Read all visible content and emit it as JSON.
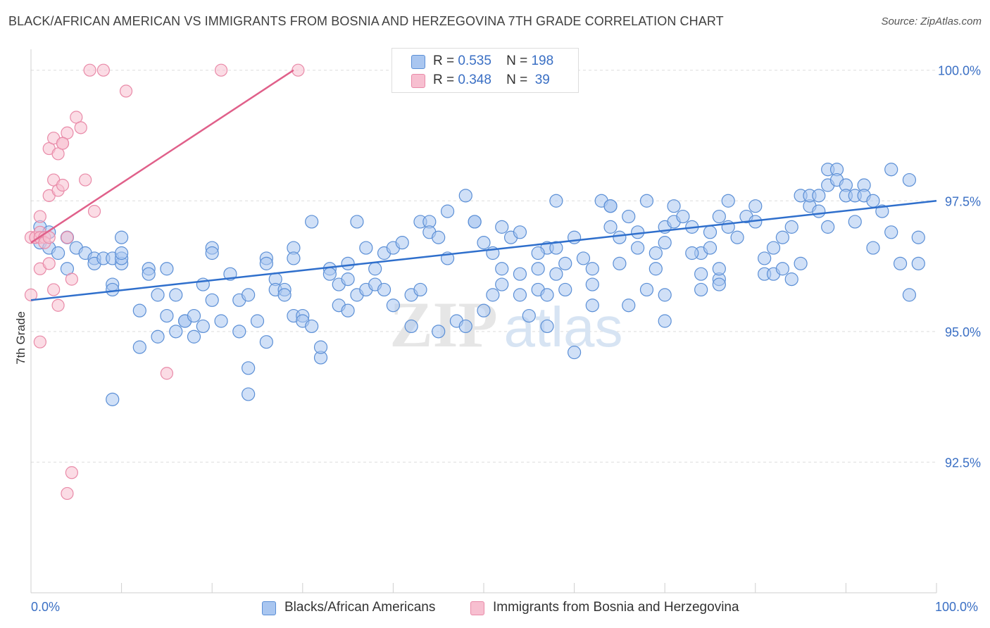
{
  "title": "BLACK/AFRICAN AMERICAN VS IMMIGRANTS FROM BOSNIA AND HERZEGOVINA 7TH GRADE CORRELATION CHART",
  "source": "Source: ZipAtlas.com",
  "watermark": {
    "zip": "ZIP",
    "atlas": "atlas"
  },
  "legend": {
    "rows": [
      {
        "r_label": "R =",
        "r_value": "0.535",
        "n_label": "N =",
        "n_value": "198"
      },
      {
        "r_label": "R =",
        "r_value": "0.348",
        "n_label": "N =",
        "n_value": "39"
      }
    ]
  },
  "bottom_legend": {
    "series1": "Blacks/African Americans",
    "series2": "Immigrants from Bosnia and Herzegovina"
  },
  "chart_data": {
    "type": "scatter",
    "title": "BLACK/AFRICAN AMERICAN VS IMMIGRANTS FROM BOSNIA AND HERZEGOVINA 7TH GRADE CORRELATION CHART",
    "xlabel": "",
    "ylabel": "7th Grade",
    "x_tick_labels": [
      "0.0%",
      "100.0%"
    ],
    "y_tick_labels": [
      "100.0%",
      "97.5%",
      "95.0%",
      "92.5%"
    ],
    "y_ticks": [
      100.0,
      97.5,
      95.0,
      92.5
    ],
    "xlim": [
      0,
      100
    ],
    "ylim": [
      90.0,
      100.4
    ],
    "grid": true,
    "colors": {
      "series1_fill": "#a9c6f0",
      "series1_stroke": "#5b8fd6",
      "series1_line": "#2f6fcc",
      "series2_fill": "#f7bfd0",
      "series2_stroke": "#e98aa8",
      "series2_line": "#e0608a",
      "tick_label": "#3a6fc4",
      "grid": "#dddddd"
    },
    "series": [
      {
        "name": "Blacks/African Americans",
        "trend": {
          "x": [
            0,
            100
          ],
          "y": [
            95.6,
            97.5
          ]
        },
        "points": [
          [
            1,
            97.0
          ],
          [
            2,
            96.9
          ],
          [
            1,
            96.7
          ],
          [
            2,
            96.6
          ],
          [
            3,
            96.5
          ],
          [
            4,
            96.2
          ],
          [
            4,
            96.8
          ],
          [
            5,
            96.6
          ],
          [
            6,
            96.5
          ],
          [
            7,
            96.4
          ],
          [
            7,
            96.3
          ],
          [
            8,
            96.4
          ],
          [
            9,
            95.9
          ],
          [
            9,
            96.4
          ],
          [
            9,
            93.7
          ],
          [
            9,
            95.8
          ],
          [
            10,
            96.8
          ],
          [
            10,
            96.3
          ],
          [
            10,
            96.4
          ],
          [
            10,
            96.5
          ],
          [
            12,
            95.4
          ],
          [
            12,
            94.7
          ],
          [
            13,
            96.2
          ],
          [
            13,
            96.1
          ],
          [
            14,
            95.7
          ],
          [
            15,
            96.2
          ],
          [
            14,
            94.9
          ],
          [
            15,
            95.3
          ],
          [
            16,
            95.7
          ],
          [
            16,
            95.0
          ],
          [
            17,
            95.2
          ],
          [
            17,
            95.2
          ],
          [
            18,
            94.9
          ],
          [
            18,
            95.3
          ],
          [
            19,
            95.9
          ],
          [
            19,
            95.1
          ],
          [
            20,
            96.6
          ],
          [
            20,
            96.5
          ],
          [
            20,
            95.6
          ],
          [
            21,
            95.2
          ],
          [
            22,
            96.1
          ],
          [
            23,
            95.6
          ],
          [
            23,
            95.0
          ],
          [
            24,
            95.7
          ],
          [
            24,
            94.3
          ],
          [
            24,
            93.8
          ],
          [
            25,
            95.2
          ],
          [
            26,
            96.4
          ],
          [
            26,
            94.8
          ],
          [
            26,
            96.3
          ],
          [
            27,
            96.0
          ],
          [
            27,
            95.8
          ],
          [
            28,
            95.8
          ],
          [
            28,
            95.7
          ],
          [
            29,
            96.6
          ],
          [
            29,
            96.4
          ],
          [
            29,
            95.3
          ],
          [
            30,
            95.3
          ],
          [
            30,
            95.2
          ],
          [
            31,
            97.1
          ],
          [
            31,
            95.1
          ],
          [
            32,
            94.5
          ],
          [
            32,
            94.7
          ],
          [
            33,
            96.2
          ],
          [
            33,
            96.1
          ],
          [
            34,
            95.9
          ],
          [
            34,
            95.5
          ],
          [
            35,
            96.3
          ],
          [
            35,
            96.0
          ],
          [
            35,
            95.4
          ],
          [
            36,
            95.7
          ],
          [
            36,
            97.1
          ],
          [
            37,
            95.8
          ],
          [
            37,
            96.6
          ],
          [
            38,
            95.9
          ],
          [
            38,
            96.2
          ],
          [
            39,
            96.5
          ],
          [
            39,
            95.8
          ],
          [
            40,
            95.5
          ],
          [
            40,
            96.6
          ],
          [
            41,
            96.7
          ],
          [
            42,
            95.1
          ],
          [
            42,
            95.7
          ],
          [
            43,
            95.8
          ],
          [
            43,
            97.1
          ],
          [
            44,
            97.1
          ],
          [
            44,
            96.9
          ],
          [
            45,
            95.0
          ],
          [
            45,
            96.8
          ],
          [
            46,
            96.4
          ],
          [
            47,
            95.2
          ],
          [
            48,
            95.1
          ],
          [
            48,
            97.6
          ],
          [
            49,
            97.1
          ],
          [
            49,
            97.1
          ],
          [
            50,
            96.7
          ],
          [
            50,
            95.4
          ],
          [
            51,
            95.7
          ],
          [
            52,
            97.0
          ],
          [
            51,
            96.5
          ],
          [
            52,
            95.9
          ],
          [
            52,
            96.2
          ],
          [
            53,
            96.8
          ],
          [
            54,
            96.9
          ],
          [
            54,
            95.7
          ],
          [
            54,
            96.1
          ],
          [
            55,
            95.3
          ],
          [
            56,
            96.2
          ],
          [
            56,
            95.8
          ],
          [
            57,
            96.6
          ],
          [
            57,
            95.7
          ],
          [
            57,
            95.1
          ],
          [
            58,
            96.6
          ],
          [
            58,
            96.1
          ],
          [
            58,
            97.5
          ],
          [
            59,
            95.8
          ],
          [
            59,
            96.3
          ],
          [
            60,
            96.8
          ],
          [
            60,
            94.6
          ],
          [
            61,
            96.4
          ],
          [
            62,
            96.2
          ],
          [
            62,
            95.9
          ],
          [
            63,
            97.5
          ],
          [
            64,
            97.0
          ],
          [
            64,
            97.4
          ],
          [
            65,
            96.8
          ],
          [
            65,
            96.3
          ],
          [
            66,
            97.2
          ],
          [
            67,
            96.9
          ],
          [
            67,
            96.6
          ],
          [
            68,
            95.8
          ],
          [
            68,
            97.5
          ],
          [
            69,
            96.2
          ],
          [
            69,
            96.5
          ],
          [
            70,
            96.7
          ],
          [
            70,
            97.0
          ],
          [
            70,
            95.2
          ],
          [
            71,
            97.4
          ],
          [
            71,
            97.1
          ],
          [
            72,
            97.2
          ],
          [
            73,
            97.0
          ],
          [
            74,
            96.5
          ],
          [
            74,
            96.1
          ],
          [
            75,
            96.9
          ],
          [
            75,
            96.6
          ],
          [
            76,
            96.0
          ],
          [
            76,
            97.2
          ],
          [
            76,
            96.2
          ],
          [
            77,
            97.5
          ],
          [
            77,
            97.0
          ],
          [
            78,
            96.8
          ],
          [
            79,
            97.2
          ],
          [
            80,
            97.4
          ],
          [
            81,
            96.1
          ],
          [
            81,
            96.4
          ],
          [
            82,
            96.1
          ],
          [
            82,
            96.6
          ],
          [
            83,
            96.8
          ],
          [
            83,
            96.2
          ],
          [
            84,
            97.0
          ],
          [
            85,
            97.6
          ],
          [
            85,
            96.3
          ],
          [
            86,
            97.4
          ],
          [
            86,
            97.6
          ],
          [
            87,
            97.3
          ],
          [
            87,
            97.6
          ],
          [
            88,
            98.1
          ],
          [
            88,
            97.8
          ],
          [
            89,
            98.1
          ],
          [
            89,
            97.9
          ],
          [
            90,
            97.8
          ],
          [
            90,
            97.6
          ],
          [
            91,
            97.6
          ],
          [
            91,
            97.1
          ],
          [
            92,
            97.8
          ],
          [
            92,
            97.6
          ],
          [
            93,
            97.5
          ],
          [
            93,
            96.6
          ],
          [
            94,
            97.3
          ],
          [
            95,
            98.1
          ],
          [
            95,
            96.9
          ],
          [
            96,
            96.3
          ],
          [
            97,
            97.9
          ],
          [
            97,
            95.7
          ],
          [
            98,
            96.8
          ],
          [
            98,
            96.3
          ],
          [
            84,
            96.0
          ],
          [
            76,
            95.9
          ],
          [
            66,
            95.5
          ],
          [
            74,
            95.8
          ],
          [
            73,
            96.5
          ],
          [
            56,
            96.5
          ],
          [
            62,
            95.5
          ],
          [
            70,
            95.7
          ],
          [
            46,
            97.3
          ],
          [
            64,
            97.4
          ],
          [
            80,
            97.1
          ],
          [
            88,
            97.0
          ]
        ]
      },
      {
        "name": "Immigrants from Bosnia and Herzegovina",
        "trend": {
          "x": [
            0,
            29
          ],
          "y": [
            96.7,
            100.0
          ]
        },
        "points": [
          [
            0,
            95.7
          ],
          [
            0,
            96.8
          ],
          [
            0.5,
            96.8
          ],
          [
            0.5,
            96.8
          ],
          [
            1,
            96.9
          ],
          [
            1,
            96.2
          ],
          [
            1,
            96.8
          ],
          [
            1,
            97.2
          ],
          [
            1.5,
            96.8
          ],
          [
            1.5,
            96.7
          ],
          [
            2,
            96.8
          ],
          [
            2,
            96.3
          ],
          [
            2,
            97.6
          ],
          [
            2.5,
            95.8
          ],
          [
            2,
            98.5
          ],
          [
            2.5,
            98.7
          ],
          [
            2.5,
            97.9
          ],
          [
            3,
            98.4
          ],
          [
            3,
            97.7
          ],
          [
            3,
            95.5
          ],
          [
            3.5,
            98.6
          ],
          [
            3.5,
            97.8
          ],
          [
            4,
            96.8
          ],
          [
            4,
            98.8
          ],
          [
            4.5,
            96.0
          ],
          [
            5,
            99.1
          ],
          [
            5.5,
            98.9
          ],
          [
            6,
            97.9
          ],
          [
            7,
            97.3
          ],
          [
            6.5,
            100.0
          ],
          [
            8,
            100.0
          ],
          [
            10.5,
            99.6
          ],
          [
            15,
            94.2
          ],
          [
            4.5,
            92.3
          ],
          [
            4,
            91.9
          ],
          [
            1,
            94.8
          ],
          [
            21,
            100.0
          ],
          [
            29.5,
            100.0
          ],
          [
            3.5,
            98.6
          ]
        ]
      }
    ]
  }
}
